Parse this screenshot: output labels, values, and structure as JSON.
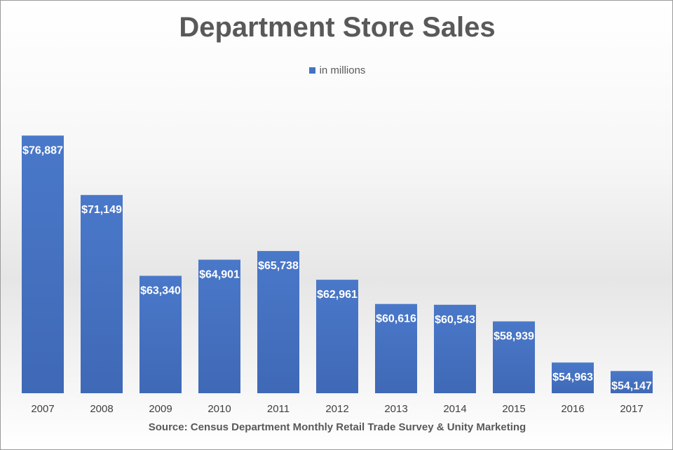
{
  "chart_data": {
    "type": "bar",
    "title": "Department Store Sales",
    "legend": "in millions",
    "legend_position": "top",
    "source": "Source: Census Department Monthly Retail Trade Survey & Unity Marketing",
    "categories": [
      "2007",
      "2008",
      "2009",
      "2010",
      "2011",
      "2012",
      "2013",
      "2014",
      "2015",
      "2016",
      "2017"
    ],
    "values": [
      76887,
      71149,
      63340,
      64901,
      65738,
      62961,
      60616,
      60543,
      58939,
      54963,
      54147
    ],
    "data_labels": [
      "$76,887",
      "$71,149",
      "$63,340",
      "$64,901",
      "$65,738",
      "$62,961",
      "$60,616",
      "$60,543",
      "$58,939",
      "$54,963",
      "$54,147"
    ],
    "ylim": [
      52000,
      78000
    ],
    "grid": false,
    "bar_color": "#4472C4"
  }
}
